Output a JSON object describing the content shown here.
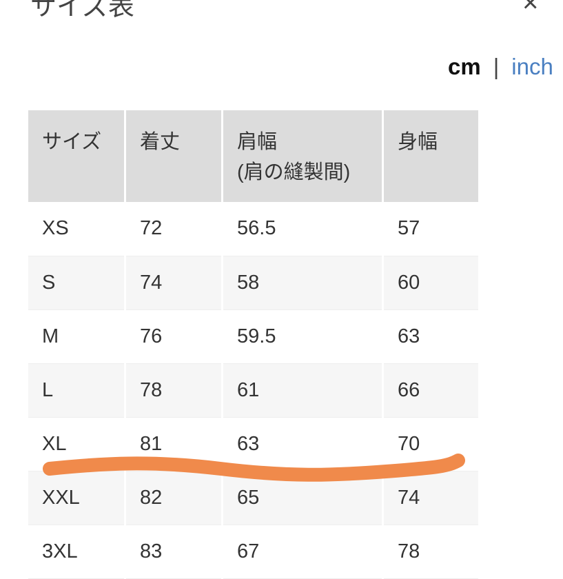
{
  "header": {
    "title": "サイズ表",
    "close_icon": "close-icon"
  },
  "units": {
    "cm": "cm",
    "separator": "|",
    "inch": "inch"
  },
  "table": {
    "headers": [
      "サイズ",
      "着丈",
      "肩幅",
      "身幅"
    ],
    "header_sub": "(肩の縫製間)",
    "rows": [
      [
        "XS",
        "72",
        "56.5",
        "57"
      ],
      [
        "S",
        "74",
        "58",
        "60"
      ],
      [
        "M",
        "76",
        "59.5",
        "63"
      ],
      [
        "L",
        "78",
        "61",
        "66"
      ],
      [
        "XL",
        "81",
        "63",
        "70"
      ],
      [
        "XXL",
        "82",
        "65",
        "74"
      ],
      [
        "3XL",
        "83",
        "67",
        "78"
      ]
    ]
  },
  "annotation": {
    "color": "#f08a4b",
    "highlight_row": "XL"
  }
}
